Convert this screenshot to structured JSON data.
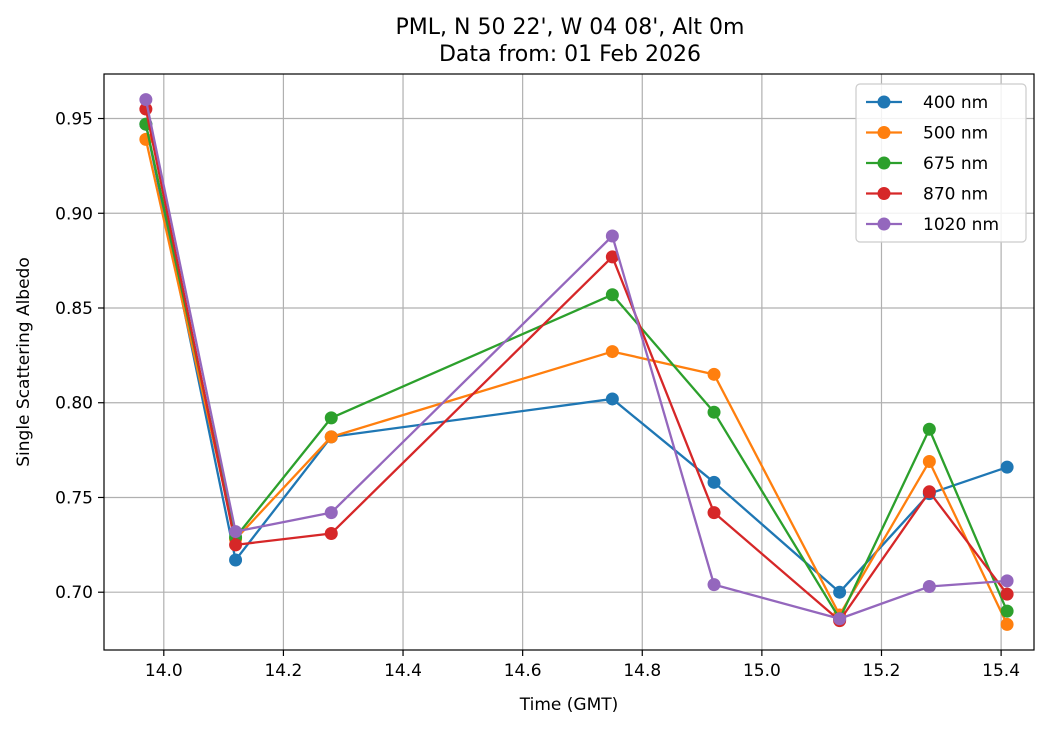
{
  "chart_data": {
    "type": "line",
    "title": [
      "PML, N 50 22', W 04 08', Alt 0m",
      "Data from: 01 Feb 2026"
    ],
    "xlabel": "Time (GMT)",
    "ylabel": "Single Scattering Albedo",
    "xlim": [
      13.9,
      15.455
    ],
    "ylim": [
      0.6695,
      0.9735
    ],
    "xticks": [
      14.0,
      14.2,
      14.4,
      14.6,
      14.8,
      15.0,
      15.2,
      15.4
    ],
    "xtick_labels": [
      "14.0",
      "14.2",
      "14.4",
      "14.6",
      "14.8",
      "15.0",
      "15.2",
      "15.4"
    ],
    "yticks": [
      0.7,
      0.75,
      0.8,
      0.85,
      0.9,
      0.95
    ],
    "ytick_labels": [
      "0.70",
      "0.75",
      "0.80",
      "0.85",
      "0.90",
      "0.95"
    ],
    "grid": true,
    "legend_position": "top-right",
    "x": [
      13.97,
      14.12,
      14.28,
      14.75,
      14.92,
      15.13,
      15.28,
      15.41
    ],
    "series": [
      {
        "name": "400 nm",
        "color": "#1f77b4",
        "values": [
          0.947,
          0.717,
          0.782,
          0.802,
          0.758,
          0.7,
          0.752,
          0.766
        ]
      },
      {
        "name": "500 nm",
        "color": "#ff7f0e",
        "values": [
          0.939,
          0.728,
          0.782,
          0.827,
          0.815,
          0.688,
          0.769,
          0.683
        ]
      },
      {
        "name": "675 nm",
        "color": "#2ca02c",
        "values": [
          0.947,
          0.729,
          0.792,
          0.857,
          0.795,
          0.686,
          0.786,
          0.69
        ]
      },
      {
        "name": "870 nm",
        "color": "#d62728",
        "values": [
          0.955,
          0.725,
          0.731,
          0.877,
          0.742,
          0.685,
          0.753,
          0.699
        ]
      },
      {
        "name": "1020 nm",
        "color": "#9467bd",
        "values": [
          0.96,
          0.732,
          0.742,
          0.888,
          0.704,
          0.686,
          0.703,
          0.706
        ]
      }
    ]
  }
}
